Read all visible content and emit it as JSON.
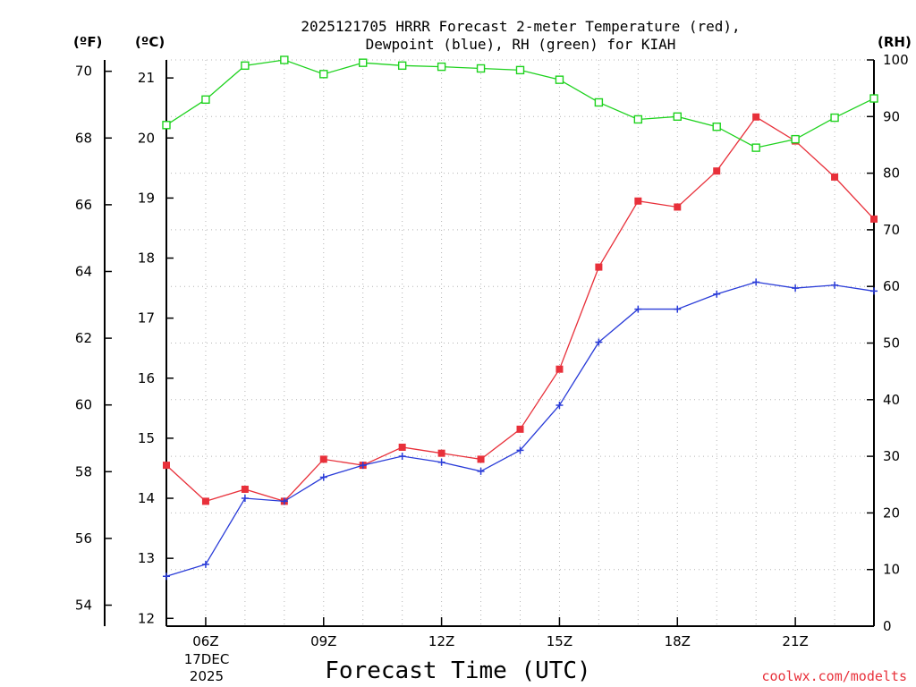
{
  "chart_data": {
    "type": "line",
    "title": [
      "2025121705 HRRR Forecast 2-meter Temperature (red),",
      "Dewpoint (blue), RH (green) for KIAH"
    ],
    "xlabel": "Forecast Time (UTC)",
    "credit": "coolwx.com/modelts",
    "units": {
      "fahrenheit": "(ºF)",
      "celsius": "(ºC)",
      "rh": "(RH)"
    },
    "x_hours": [
      5,
      6,
      7,
      8,
      9,
      10,
      11,
      12,
      13,
      14,
      15,
      16,
      17,
      18,
      19,
      20,
      21,
      22,
      23
    ],
    "xlim": [
      5,
      23
    ],
    "x_ticks": [
      {
        "hour": 6,
        "label": "06Z"
      },
      {
        "hour": 9,
        "label": "09Z"
      },
      {
        "hour": 12,
        "label": "12Z"
      },
      {
        "hour": 15,
        "label": "15Z"
      },
      {
        "hour": 18,
        "label": "18Z"
      },
      {
        "hour": 21,
        "label": "21Z"
      }
    ],
    "date_label": [
      "17DEC",
      "2025"
    ],
    "celsius_axis": {
      "ylim": [
        11.87,
        21.3
      ],
      "ticks": [
        12,
        13,
        14,
        15,
        16,
        17,
        18,
        19,
        20,
        21
      ]
    },
    "fahrenheit_axis": {
      "ylim": [
        53.37,
        70.34
      ],
      "ticks": [
        54,
        56,
        58,
        60,
        62,
        64,
        66,
        68,
        70
      ]
    },
    "rh_axis": {
      "ylim": [
        0,
        100
      ],
      "ticks": [
        0,
        10,
        20,
        30,
        40,
        50,
        60,
        70,
        80,
        90,
        100
      ]
    },
    "series": [
      {
        "name": "2-meter Temperature",
        "axis": "celsius",
        "color": "#e8303a",
        "marker": "square-filled",
        "values": [
          14.55,
          13.95,
          14.15,
          13.95,
          14.65,
          14.55,
          14.85,
          14.75,
          14.65,
          15.15,
          16.15,
          17.85,
          18.95,
          18.85,
          19.45,
          20.35,
          19.95,
          19.35,
          18.65
        ]
      },
      {
        "name": "Dewpoint",
        "axis": "celsius",
        "color": "#2a3cd8",
        "marker": "plus",
        "values": [
          12.7,
          12.9,
          14.0,
          13.95,
          14.35,
          14.55,
          14.7,
          14.6,
          14.45,
          14.8,
          15.55,
          16.6,
          17.15,
          17.15,
          17.4,
          17.6,
          17.5,
          17.55,
          17.45
        ]
      },
      {
        "name": "RH",
        "axis": "rh",
        "color": "#1ed21e",
        "marker": "square-open",
        "values": [
          88.5,
          93.0,
          99.0,
          100.0,
          97.5,
          99.5,
          99.0,
          98.8,
          98.5,
          98.2,
          96.5,
          92.5,
          89.5,
          90.0,
          88.2,
          84.5,
          86.0,
          89.8,
          93.2
        ]
      }
    ]
  }
}
